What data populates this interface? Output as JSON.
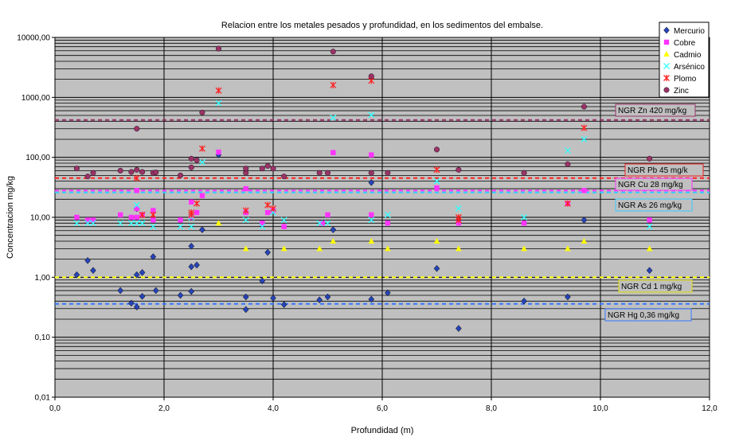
{
  "chart_data": {
    "type": "scatter",
    "title": "Relacion entre los metales pesados y profundidad, en los sedimentos del embalse.",
    "xlabel": "Profundidad (m)",
    "ylabel": "Concentracion mg/kg",
    "xlim": [
      0,
      12
    ],
    "ylim": [
      0.01,
      10000
    ],
    "yscale": "log",
    "grid": true,
    "legend_position": "top-right",
    "x_ticks": [
      "0,0",
      "2,0",
      "4,0",
      "6,0",
      "8,0",
      "10,0",
      "12,0"
    ],
    "y_ticks": [
      "0,01",
      "0,10",
      "1,00",
      "10,00",
      "100,00",
      "1000,00",
      "10000,00"
    ],
    "series": [
      {
        "name": "Mercurio",
        "color": "#2744b8",
        "marker": "diamond",
        "x": [
          0.4,
          0.6,
          0.7,
          1.2,
          1.4,
          1.5,
          1.5,
          1.5,
          1.6,
          1.6,
          1.8,
          1.85,
          2.3,
          2.3,
          2.5,
          2.5,
          2.5,
          2.6,
          2.7,
          3.0,
          3.5,
          3.5,
          3.8,
          3.9,
          4.0,
          4.2,
          4.85,
          5.0,
          5.1,
          5.8,
          5.8,
          6.1,
          7.0,
          7.4,
          8.6,
          9.4,
          9.7,
          10.9,
          10.9
        ],
        "y": [
          1.1,
          1.9,
          1.3,
          0.6,
          0.37,
          1.1,
          0.32,
          14,
          0.48,
          1.2,
          2.2,
          0.6,
          0.5,
          9,
          0.58,
          1.5,
          3.3,
          1.6,
          6.2,
          110,
          0.29,
          0.47,
          0.87,
          2.6,
          0.45,
          0.35,
          0.42,
          0.47,
          6.2,
          38,
          0.43,
          0.55,
          1.4,
          0.14,
          0.4,
          0.47,
          9,
          1.3,
          9
        ]
      },
      {
        "name": "Cobre",
        "color": "#ff33ff",
        "marker": "square",
        "x": [
          0.4,
          0.6,
          0.7,
          1.2,
          1.4,
          1.5,
          1.5,
          1.5,
          1.6,
          1.8,
          1.8,
          2.3,
          2.5,
          2.5,
          2.6,
          2.7,
          3.0,
          3.5,
          3.5,
          3.8,
          3.9,
          4.0,
          4.2,
          4.9,
          5.0,
          5.1,
          5.8,
          5.8,
          6.1,
          7.0,
          7.4,
          8.6,
          9.4,
          9.7,
          10.9
        ],
        "y": [
          10,
          9,
          9,
          11,
          10,
          10,
          14,
          28,
          11,
          9,
          13,
          9,
          10,
          18,
          12,
          23,
          122,
          12,
          30,
          8,
          12,
          13,
          7,
          8,
          11,
          120,
          110,
          11,
          8,
          31,
          8,
          8,
          17,
          28,
          9
        ]
      },
      {
        "name": "Cadmio",
        "color": "#ffff00",
        "marker": "triangle",
        "x": [
          3.0,
          3.5,
          4.2,
          4.85,
          5.1,
          5.8,
          6.1,
          7.0,
          7.4,
          8.6,
          9.4,
          9.7,
          10.9
        ],
        "y": [
          8,
          3,
          3,
          3,
          4,
          4,
          3,
          4,
          3,
          3,
          3,
          4,
          3
        ]
      },
      {
        "name": "Arsénico",
        "color": "#33ffff",
        "marker": "x",
        "x": [
          0.4,
          0.6,
          0.7,
          1.2,
          1.4,
          1.5,
          1.5,
          1.6,
          1.6,
          1.8,
          2.3,
          2.5,
          2.5,
          2.7,
          3.0,
          3.5,
          3.8,
          4.0,
          4.2,
          4.85,
          5.0,
          5.1,
          5.8,
          5.8,
          6.1,
          7.0,
          7.4,
          8.6,
          9.4,
          9.7,
          10.9
        ],
        "y": [
          8,
          8,
          8,
          8,
          8,
          8,
          16,
          8,
          8,
          7,
          7,
          7,
          10,
          83,
          800,
          9,
          7,
          12,
          9,
          8,
          8,
          460,
          510,
          9,
          11,
          40,
          14,
          10,
          130,
          200,
          7
        ]
      },
      {
        "name": "Plomo",
        "color": "#ff2222",
        "marker": "star",
        "x": [
          1.5,
          1.6,
          1.8,
          2.5,
          2.5,
          2.6,
          2.7,
          3.0,
          3.5,
          3.9,
          4.0,
          5.1,
          5.8,
          7.0,
          7.4,
          7.4,
          9.4,
          9.7
        ],
        "y": [
          45,
          11,
          11,
          12,
          11,
          17,
          140,
          1300,
          13,
          16,
          14,
          1600,
          1900,
          62,
          10,
          9,
          17,
          310
        ]
      },
      {
        "name": "Zinc",
        "color": "#9a3367",
        "marker": "circle",
        "x": [
          0.4,
          0.6,
          0.7,
          1.2,
          1.4,
          1.5,
          1.5,
          1.6,
          1.8,
          1.85,
          2.3,
          2.5,
          2.5,
          2.6,
          2.7,
          3.0,
          3.5,
          3.5,
          3.8,
          3.9,
          4.0,
          4.2,
          4.85,
          5.0,
          5.1,
          5.8,
          5.8,
          6.1,
          7.0,
          7.4,
          8.6,
          9.4,
          9.7,
          10.9
        ],
        "y": [
          65,
          48,
          55,
          60,
          57,
          300,
          62,
          57,
          55,
          56,
          50,
          95,
          68,
          90,
          560,
          6500,
          55,
          65,
          65,
          72,
          65,
          48,
          55,
          55,
          5800,
          2250,
          55,
          55,
          135,
          62,
          55,
          77,
          700,
          95
        ]
      }
    ],
    "reference_lines": [
      {
        "label": "NGR Zn 420 mg/kg",
        "value": 420,
        "color": "#9a3367",
        "box_border": "#9a3367"
      },
      {
        "label": "NGR Pb 45 mg/k",
        "value": 45,
        "color": "#ff2222",
        "box_border": "#ee2222"
      },
      {
        "label": "NGR Cu 28 mg/kg",
        "value": 28,
        "color": "#ff33ff",
        "box_border": "#ff33ff"
      },
      {
        "label": "NGR As 26 mg/kg",
        "value": 26,
        "color": "#33ccff",
        "box_border": "#33ccff"
      },
      {
        "label": "NGR Cd 1 mg/kg",
        "value": 1,
        "color": "#ffff00",
        "box_border": "#dddd00"
      },
      {
        "label": "NGR Hg 0,36 mg/kg",
        "value": 0.36,
        "color": "#3377ff",
        "box_border": "#3377ff"
      }
    ]
  }
}
